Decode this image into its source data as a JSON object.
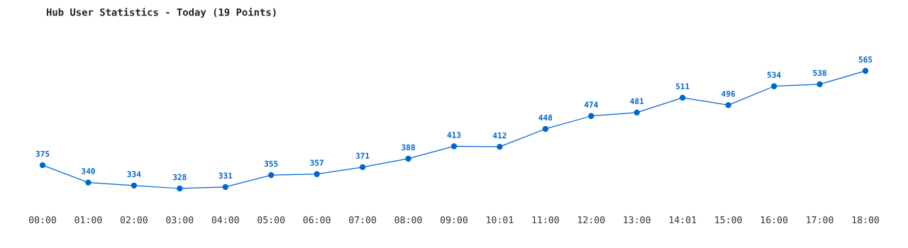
{
  "chart_data": {
    "type": "line",
    "title": "Hub User Statistics - Today (19 Points)",
    "categories": [
      "00:00",
      "01:00",
      "02:00",
      "03:00",
      "04:00",
      "05:00",
      "06:00",
      "07:00",
      "08:00",
      "09:00",
      "10:01",
      "11:00",
      "12:00",
      "13:00",
      "14:01",
      "15:00",
      "16:00",
      "17:00",
      "18:00"
    ],
    "series": [
      {
        "color": "#0066cc",
        "values": [
          375,
          340,
          334,
          328,
          331,
          355,
          357,
          371,
          388,
          413,
          412,
          448,
          474,
          481,
          511,
          496,
          534,
          538,
          565
        ]
      }
    ],
    "data_labels": true,
    "marker": "circle",
    "line_style": "solid",
    "grid": false,
    "legend": false
  }
}
